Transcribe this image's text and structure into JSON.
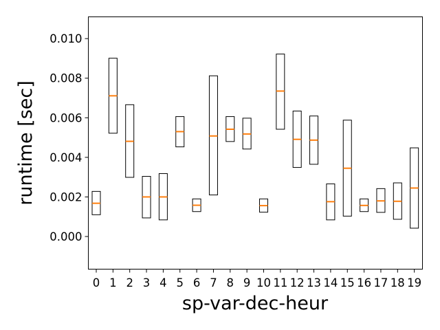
{
  "chart_data": {
    "type": "box",
    "xlabel": "sp-var-dec-heur",
    "ylabel": "runtime [sec]",
    "ylim": [
      -0.00165,
      0.0111
    ],
    "yticks": [
      "0.000",
      "0.002",
      "0.004",
      "0.006",
      "0.008",
      "0.010"
    ],
    "categories": [
      "0",
      "1",
      "2",
      "3",
      "4",
      "5",
      "6",
      "7",
      "8",
      "9",
      "10",
      "11",
      "12",
      "13",
      "14",
      "15",
      "16",
      "17",
      "18",
      "19"
    ],
    "boxes": [
      {
        "q1": 0.0011,
        "median": 0.00168,
        "q3": 0.00228
      },
      {
        "q1": 0.00522,
        "median": 0.00711,
        "q3": 0.00901
      },
      {
        "q1": 0.00299,
        "median": 0.00481,
        "q3": 0.00666
      },
      {
        "q1": 0.00094,
        "median": 0.002,
        "q3": 0.00304
      },
      {
        "q1": 0.00084,
        "median": 0.002,
        "q3": 0.00318
      },
      {
        "q1": 0.00453,
        "median": 0.0053,
        "q3": 0.00606
      },
      {
        "q1": 0.00126,
        "median": 0.00158,
        "q3": 0.0019
      },
      {
        "q1": 0.0021,
        "median": 0.00508,
        "q3": 0.00812
      },
      {
        "q1": 0.0048,
        "median": 0.00542,
        "q3": 0.00606
      },
      {
        "q1": 0.00442,
        "median": 0.00518,
        "q3": 0.00598
      },
      {
        "q1": 0.00123,
        "median": 0.00156,
        "q3": 0.0019
      },
      {
        "q1": 0.00542,
        "median": 0.00735,
        "q3": 0.00922
      },
      {
        "q1": 0.00349,
        "median": 0.00491,
        "q3": 0.00634
      },
      {
        "q1": 0.00365,
        "median": 0.00487,
        "q3": 0.00609
      },
      {
        "q1": 0.00084,
        "median": 0.00176,
        "q3": 0.00266
      },
      {
        "q1": 0.00103,
        "median": 0.00345,
        "q3": 0.00588
      },
      {
        "q1": 0.00126,
        "median": 0.00157,
        "q3": 0.0019
      },
      {
        "q1": 0.00122,
        "median": 0.0018,
        "q3": 0.00242
      },
      {
        "q1": 0.00087,
        "median": 0.00178,
        "q3": 0.00271
      },
      {
        "q1": 0.00042,
        "median": 0.00245,
        "q3": 0.00448
      }
    ],
    "colors": {
      "box": "#000000",
      "median": "#ff7f0e",
      "frame": "#000000"
    }
  }
}
